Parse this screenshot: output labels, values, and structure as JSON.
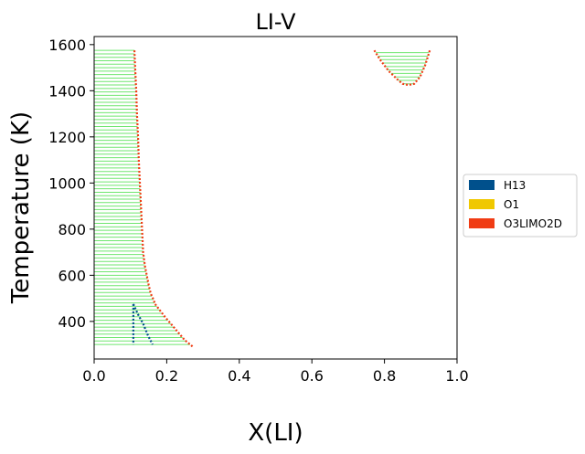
{
  "chart_data": {
    "type": "line",
    "title": "LI-V",
    "xlabel": "X(LI)",
    "ylabel": "Temperature (K)",
    "xlim": [
      0.0,
      1.0
    ],
    "ylim": [
      237,
      1635
    ],
    "xticks": [
      "0.0",
      "0.2",
      "0.4",
      "0.6",
      "0.8",
      "1.0"
    ],
    "yticks": [
      "400",
      "600",
      "800",
      "1000",
      "1200",
      "1400",
      "1600"
    ],
    "grid": false,
    "legend_position": "right",
    "legend": [
      {
        "name": "H13",
        "color": "#00508c"
      },
      {
        "name": "O1",
        "color": "#f0c800"
      },
      {
        "name": "O3LIMO2D",
        "color": "#f03c14"
      }
    ],
    "tie_line_color": "#5fe35f",
    "series": [
      {
        "name": "O3LIMO2D",
        "color": "#f03c14",
        "x": [
          0.111,
          0.113,
          0.116,
          0.118,
          0.121,
          0.123,
          0.126,
          0.129,
          0.132,
          0.135,
          0.14,
          0.145,
          0.15,
          0.156,
          0.162,
          0.168
        ],
        "y": [
          1575,
          1500,
          1400,
          1300,
          1200,
          1100,
          1000,
          900,
          800,
          700,
          640,
          600,
          560,
          520,
          500,
          475
        ]
      },
      {
        "name": "O3LIMO2D",
        "color": "#f03c14",
        "x": [
          0.168,
          0.195,
          0.222,
          0.249,
          0.272
        ],
        "y": [
          475,
          420,
          370,
          320,
          290
        ]
      },
      {
        "name": "H13",
        "color": "#00508c",
        "x": [
          0.108,
          0.108,
          0.108,
          0.108,
          0.108
        ],
        "y": [
          475,
          430,
          390,
          340,
          300
        ]
      },
      {
        "name": "H13",
        "color": "#00508c",
        "x": [
          0.108,
          0.121,
          0.135,
          0.148,
          0.161
        ],
        "y": [
          475,
          430,
          390,
          340,
          300
        ]
      },
      {
        "name": "O3LIMO2D",
        "color": "#f03c14",
        "x": [
          0.772,
          0.79,
          0.812,
          0.835,
          0.85,
          0.866,
          0.882,
          0.898,
          0.912,
          0.925
        ],
        "y": [
          1575,
          1530,
          1485,
          1450,
          1430,
          1425,
          1430,
          1460,
          1510,
          1575
        ]
      }
    ],
    "tie_line_regions": [
      {
        "x_from": 0.0,
        "y": [
          300,
          1575
        ]
      },
      {
        "x_from": 0.78,
        "y": [
          1425,
          1575
        ]
      }
    ]
  }
}
